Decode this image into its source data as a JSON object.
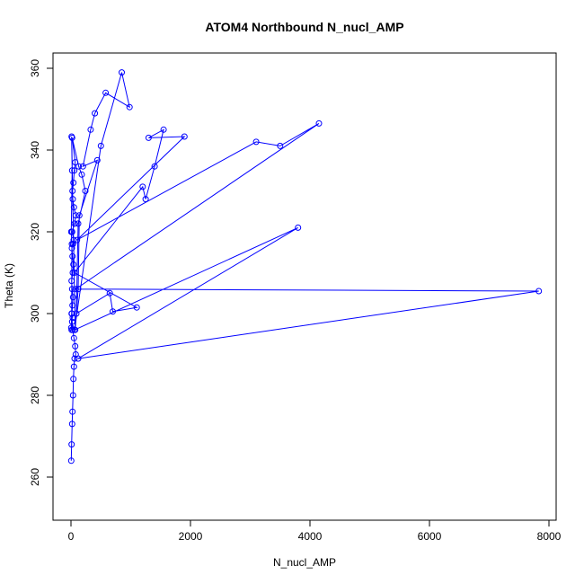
{
  "chart_data": {
    "type": "line",
    "title": "ATOM4 Northbound N_nucl_AMP",
    "xlabel": "N_nucl_AMP",
    "ylabel": "Theta (K)",
    "xlim": [
      -250,
      8000
    ],
    "ylim": [
      250,
      360
    ],
    "xticks": [
      0,
      2000,
      4000,
      6000,
      8000
    ],
    "yticks": [
      260,
      280,
      300,
      320,
      340,
      360
    ],
    "grid": false,
    "legend": "none",
    "markers": "open-circle",
    "series": [
      {
        "color": "#0000ff",
        "points": [
          [
            5,
            264
          ],
          [
            10,
            268
          ],
          [
            20,
            273
          ],
          [
            25,
            276
          ],
          [
            35,
            280
          ],
          [
            40,
            284
          ],
          [
            50,
            287
          ],
          [
            60,
            289
          ],
          [
            80,
            290
          ],
          [
            70,
            292
          ],
          [
            50,
            294
          ],
          [
            30,
            296
          ],
          [
            20,
            298
          ],
          [
            15,
            300
          ],
          [
            25,
            302
          ],
          [
            35,
            304
          ],
          [
            20,
            306
          ],
          [
            10,
            308
          ],
          [
            30,
            310
          ],
          [
            40,
            312
          ],
          [
            25,
            314
          ],
          [
            15,
            316
          ],
          [
            35,
            317
          ],
          [
            45,
            318
          ],
          [
            20,
            320
          ],
          [
            60,
            322
          ],
          [
            80,
            324
          ],
          [
            50,
            326
          ],
          [
            30,
            328
          ],
          [
            25,
            330
          ],
          [
            40,
            332
          ],
          [
            55,
            335
          ],
          [
            70,
            337
          ],
          [
            20,
            343
          ],
          [
            130,
            336
          ],
          [
            180,
            334
          ],
          [
            240,
            330
          ],
          [
            120,
            322
          ],
          [
            90,
            300
          ],
          [
            650,
            305
          ],
          [
            700,
            300.5
          ],
          [
            1100,
            301.5
          ],
          [
            60,
            310
          ],
          [
            1200,
            331
          ],
          [
            1250,
            328
          ],
          [
            1400,
            336
          ],
          [
            1550,
            345
          ],
          [
            1300,
            343
          ],
          [
            1900,
            343.3
          ],
          [
            100,
            318
          ],
          [
            3100,
            342
          ],
          [
            3500,
            341
          ],
          [
            4150,
            346.5
          ],
          [
            80,
            306
          ],
          [
            7830,
            305.5
          ],
          [
            120,
            289
          ],
          [
            3800,
            321
          ],
          [
            60,
            296
          ],
          [
            500,
            341
          ],
          [
            850,
            359
          ],
          [
            980,
            350.5
          ],
          [
            580,
            354
          ],
          [
            400,
            349
          ],
          [
            330,
            345
          ],
          [
            200,
            336
          ],
          [
            440,
            337.5
          ],
          [
            140,
            324
          ],
          [
            120,
            306
          ],
          [
            70,
            296
          ],
          [
            10,
            343.3
          ],
          [
            20,
            335
          ],
          [
            5,
            320
          ],
          [
            15,
            317
          ],
          [
            10,
            296
          ],
          [
            5,
            296.5
          ],
          [
            10,
            300
          ],
          [
            30,
            299
          ]
        ]
      }
    ]
  }
}
